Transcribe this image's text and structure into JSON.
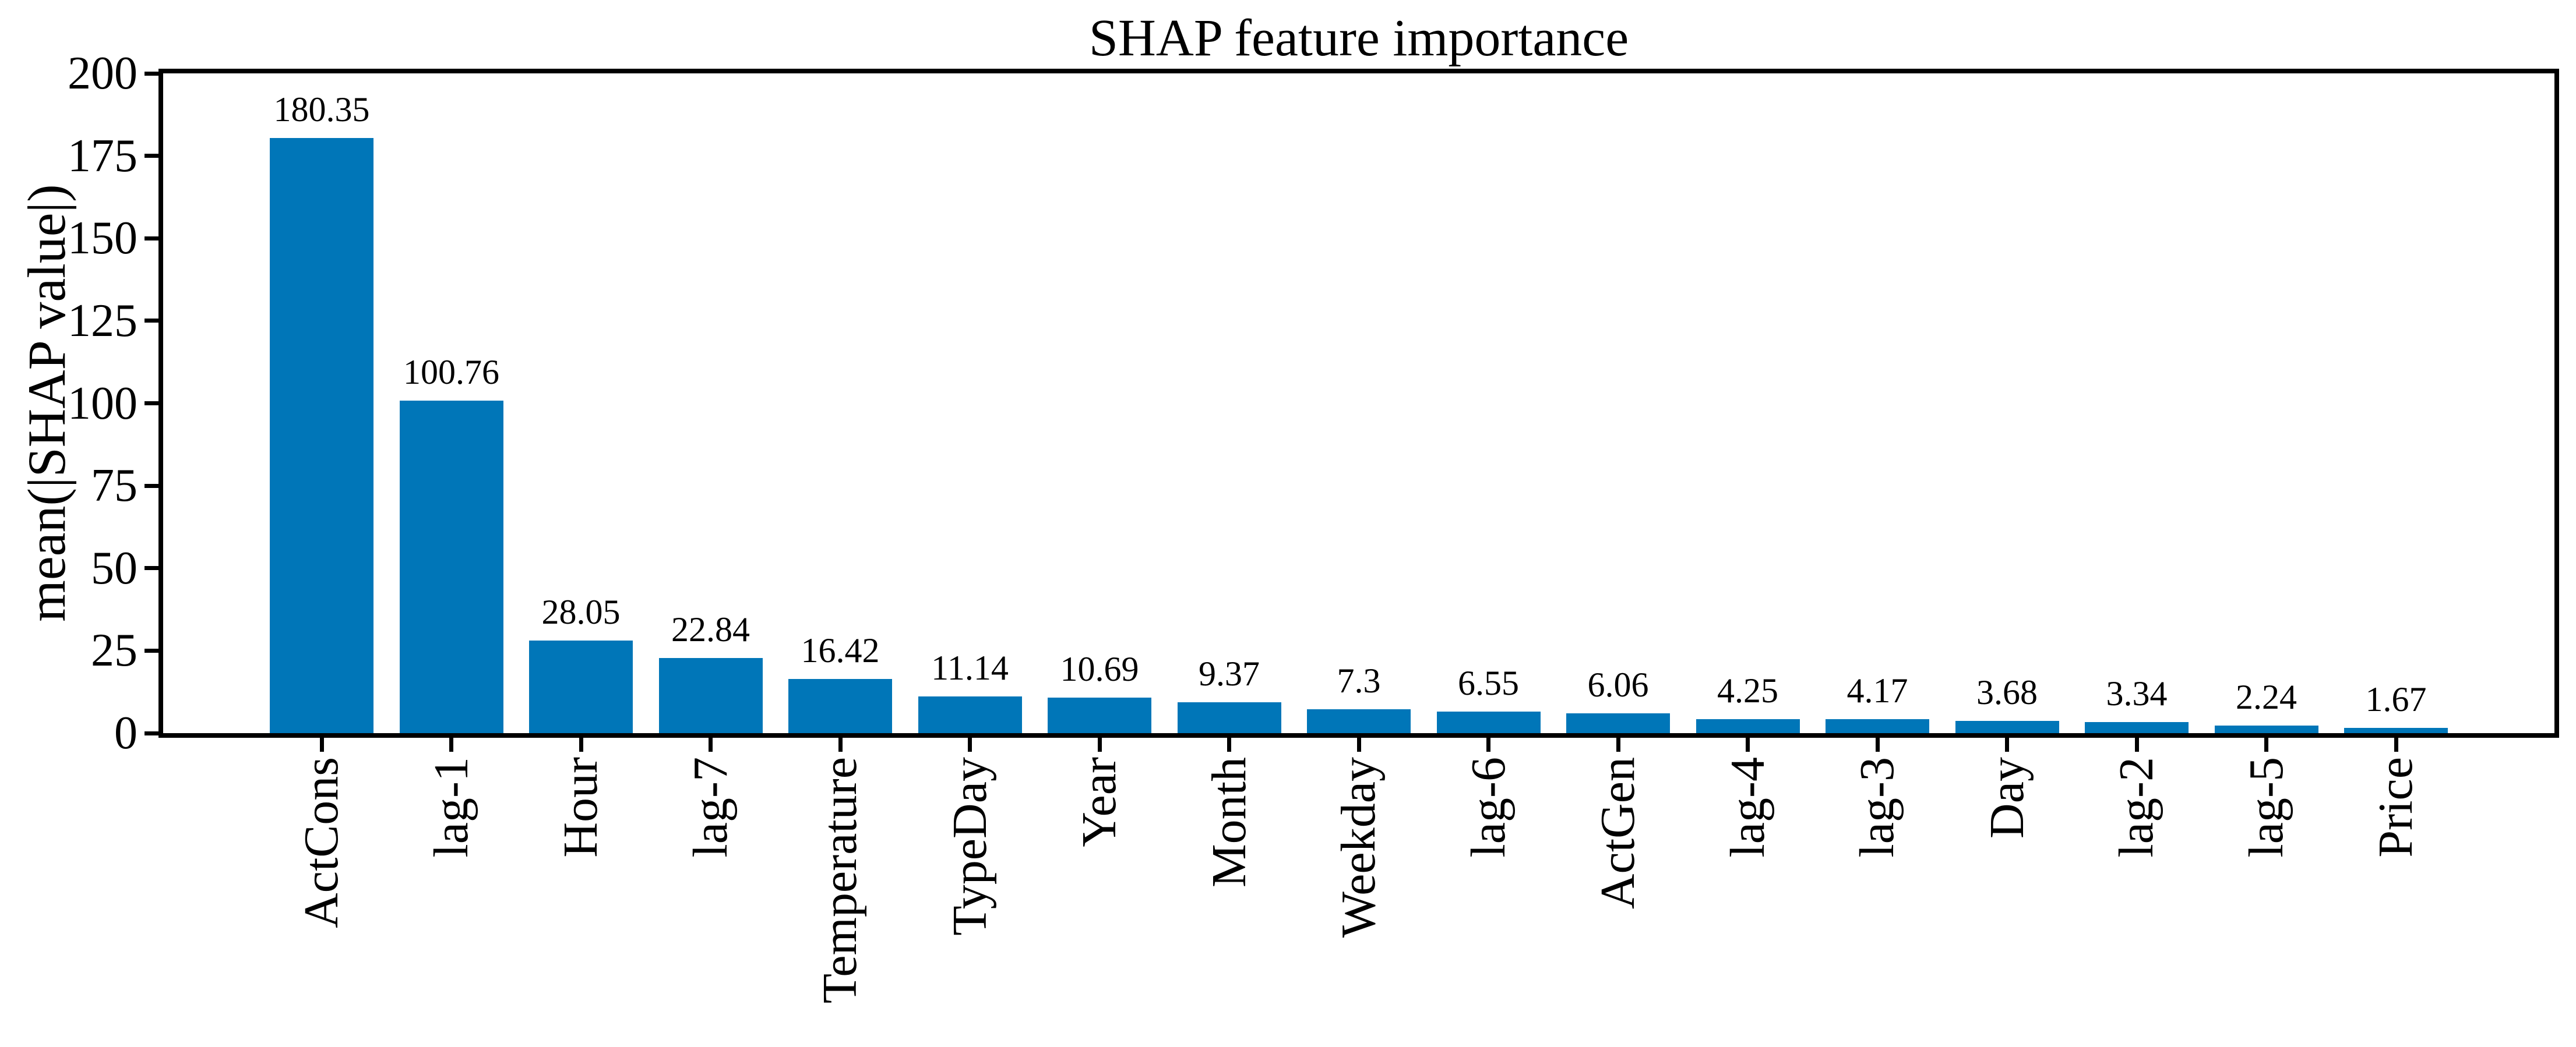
{
  "chart_data": {
    "type": "bar",
    "title": "SHAP feature importance",
    "xlabel": "",
    "ylabel": "mean(|SHAP value|)",
    "categories": [
      "ActCons",
      "lag-1",
      "Hour",
      "lag-7",
      "Temperature",
      "TypeDay",
      "Year",
      "Month",
      "Weekday",
      "lag-6",
      "ActGen",
      "lag-4",
      "lag-3",
      "Day",
      "lag-2",
      "lag-5",
      "Price"
    ],
    "values": [
      180.35,
      100.76,
      28.05,
      22.84,
      16.42,
      11.14,
      10.69,
      9.37,
      7.3,
      6.55,
      6.06,
      4.25,
      4.17,
      3.68,
      3.34,
      2.24,
      1.67
    ],
    "value_labels": [
      "180.35",
      "100.76",
      "28.05",
      "22.84",
      "16.42",
      "11.14",
      "10.69",
      "9.37",
      "7.3",
      "6.55",
      "6.06",
      "4.25",
      "4.17",
      "3.68",
      "3.34",
      "2.24",
      "1.67"
    ],
    "yticks": [
      0,
      25,
      50,
      75,
      100,
      125,
      150,
      175,
      200
    ],
    "ylim": [
      0,
      200
    ],
    "bar_color": "#0076b8",
    "axis_color": "#000000",
    "text_color": "#000000",
    "background_color": "#ffffff",
    "grid": false,
    "legend": null,
    "x_tick_rotation_deg": 90,
    "bar_labels_shown": true
  }
}
